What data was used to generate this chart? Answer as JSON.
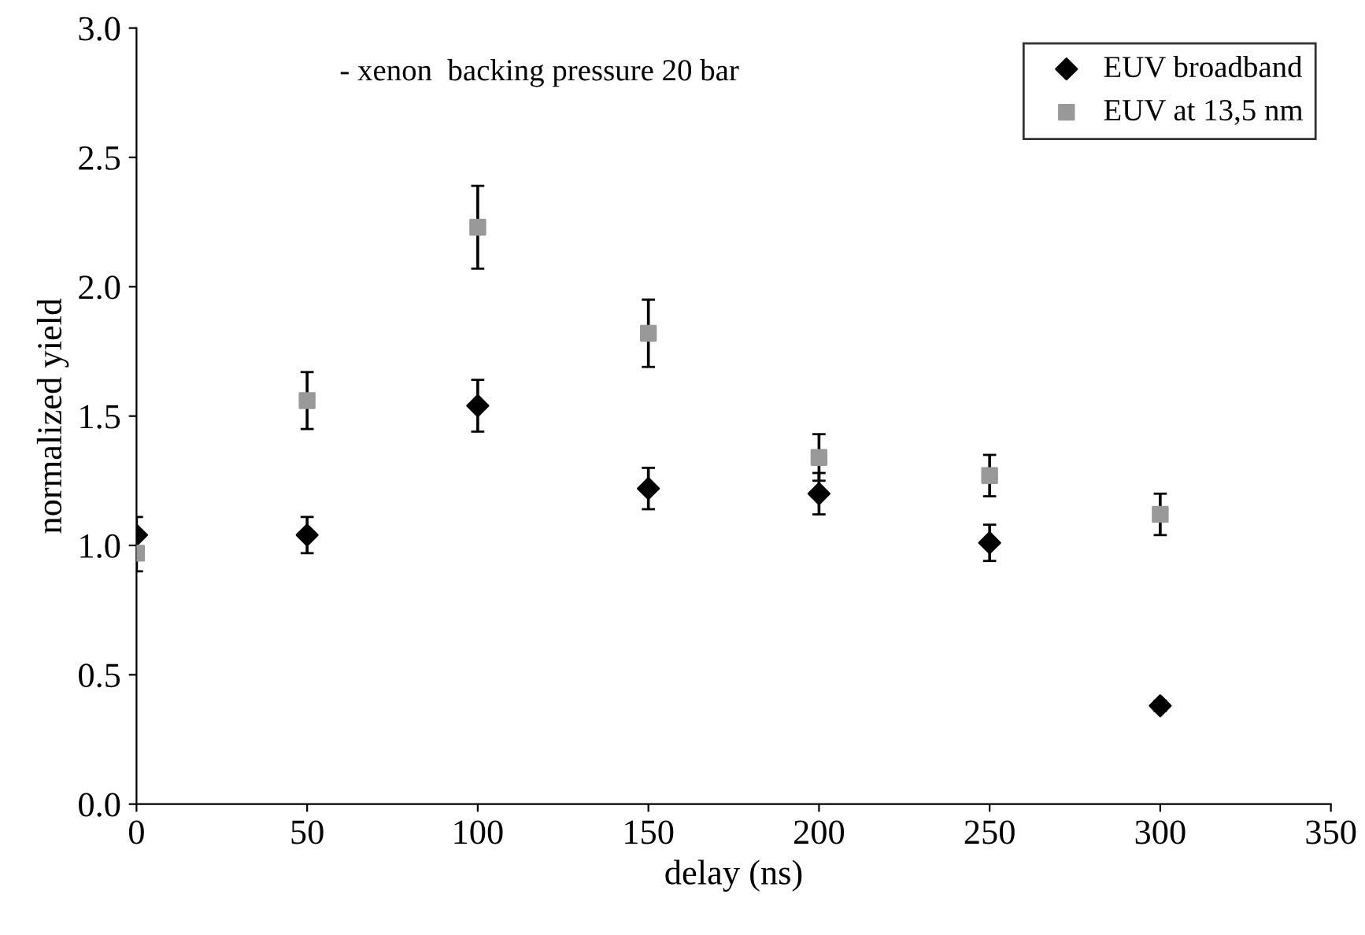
{
  "chart_data": {
    "type": "scatter",
    "xlabel": "delay (ns)",
    "ylabel": "normalized yield",
    "annotations": [
      "- xenon  backing pressure 20 bar"
    ],
    "x": [
      0,
      50,
      100,
      150,
      200,
      250,
      300
    ],
    "series": [
      {
        "name": "EUV broadband",
        "color": "#000000",
        "marker": "diamond",
        "values": [
          1.04,
          1.04,
          1.54,
          1.22,
          1.2,
          1.01,
          0.38
        ],
        "errors": [
          0.07,
          0.07,
          0.1,
          0.08,
          0.08,
          0.07,
          0.02
        ]
      },
      {
        "name": "EUV at 13,5 nm",
        "color": "#999999",
        "marker": "square",
        "values": [
          0.97,
          1.56,
          2.23,
          1.82,
          1.34,
          1.27,
          1.12
        ],
        "errors": [
          0.07,
          0.11,
          0.16,
          0.13,
          0.09,
          0.08,
          0.08
        ]
      }
    ],
    "xlim": [
      0,
      350
    ],
    "xticks": [
      0,
      50,
      100,
      150,
      200,
      250,
      300,
      350
    ],
    "ylim": [
      0,
      3
    ],
    "yticks": [
      {
        "value": 0,
        "label": "0.0"
      },
      {
        "value": 0.5,
        "label": "0.5"
      },
      {
        "value": 1,
        "label": "1.0"
      },
      {
        "value": 1.5,
        "label": "1.5"
      },
      {
        "value": 2,
        "label": "2.0"
      },
      {
        "value": 2.5,
        "label": "2.5"
      },
      {
        "value": 3,
        "label": "3.0"
      }
    ],
    "grid": false,
    "legend": "top right"
  }
}
